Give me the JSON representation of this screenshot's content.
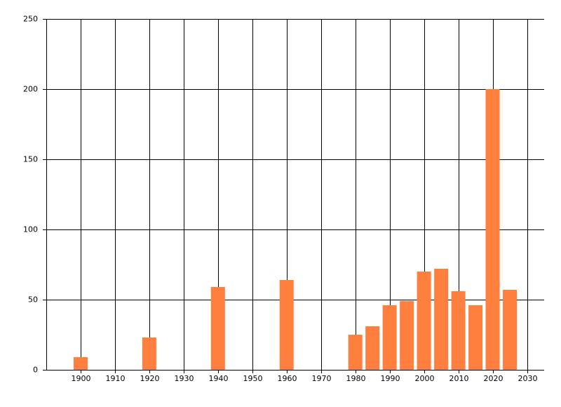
{
  "chart_data": {
    "type": "bar",
    "x": [
      1900,
      1920,
      1940,
      1960,
      1980,
      1985,
      1990,
      1995,
      2000,
      2005,
      2010,
      2015,
      2020,
      2025
    ],
    "values": [
      9,
      23,
      59,
      64,
      25,
      31,
      46,
      49,
      70,
      72,
      56,
      46,
      200,
      57
    ],
    "color": "#ff7f3f",
    "xlim": [
      1890,
      2035
    ],
    "xticks": [
      1900,
      1910,
      1920,
      1930,
      1940,
      1950,
      1960,
      1970,
      1980,
      1990,
      2000,
      2010,
      2020,
      2030
    ],
    "ylim": [
      0,
      250
    ],
    "yticks": [
      0,
      50,
      100,
      150,
      200,
      250
    ],
    "grid": true
  }
}
